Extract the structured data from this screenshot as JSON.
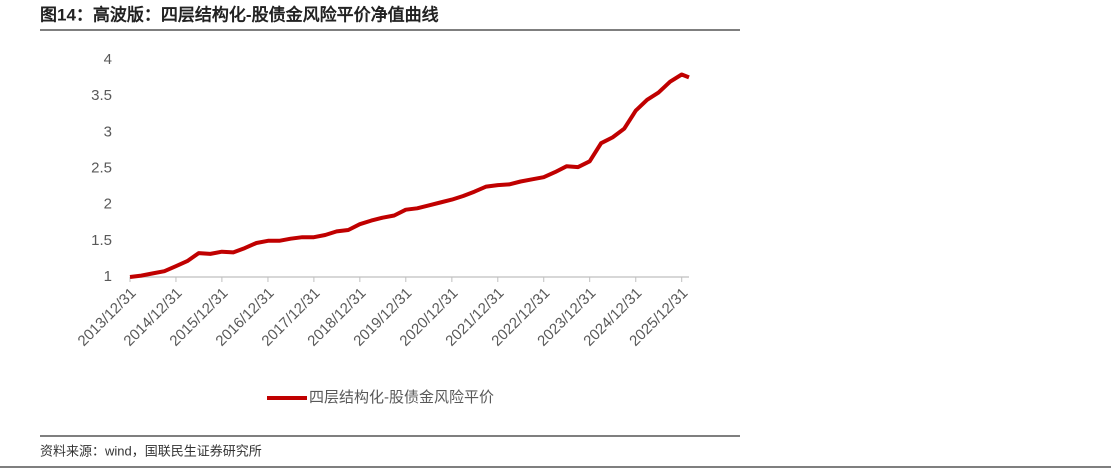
{
  "chart_data": {
    "type": "line",
    "title": "图14：高波版：四层结构化-股债金风险平价净值曲线",
    "source": "资料来源：wind，国联民生证券研究所",
    "x": [
      "2013/12/31",
      "2014/03/31",
      "2014/06/30",
      "2014/09/30",
      "2014/12/31",
      "2015/03/31",
      "2015/06/30",
      "2015/09/30",
      "2015/12/31",
      "2016/03/31",
      "2016/06/30",
      "2016/09/30",
      "2016/12/31",
      "2017/03/31",
      "2017/06/30",
      "2017/09/30",
      "2017/12/31",
      "2018/03/31",
      "2018/06/30",
      "2018/09/30",
      "2018/12/31",
      "2019/03/31",
      "2019/06/30",
      "2019/09/30",
      "2019/12/31",
      "2020/03/31",
      "2020/06/30",
      "2020/09/30",
      "2020/12/31",
      "2021/03/31",
      "2021/06/30",
      "2021/09/30",
      "2021/12/31",
      "2022/03/31",
      "2022/06/30",
      "2022/09/30",
      "2022/12/31",
      "2023/03/31",
      "2023/06/30",
      "2023/09/30",
      "2023/12/31",
      "2024/03/31",
      "2024/06/30",
      "2024/09/30",
      "2024/12/31",
      "2025/03/31",
      "2025/06/30",
      "2025/09/30",
      "2025/12/31",
      "2026/02/27"
    ],
    "series": [
      {
        "name": "四层结构化-股债金风险平价",
        "color": "#c00000",
        "values": [
          1.0,
          1.02,
          1.05,
          1.08,
          1.15,
          1.22,
          1.33,
          1.32,
          1.35,
          1.34,
          1.4,
          1.47,
          1.5,
          1.5,
          1.53,
          1.55,
          1.55,
          1.58,
          1.63,
          1.65,
          1.73,
          1.78,
          1.82,
          1.85,
          1.93,
          1.95,
          1.99,
          2.03,
          2.07,
          2.12,
          2.18,
          2.25,
          2.27,
          2.28,
          2.32,
          2.35,
          2.38,
          2.45,
          2.53,
          2.52,
          2.6,
          2.85,
          2.93,
          3.05,
          3.3,
          3.45,
          3.55,
          3.7,
          3.8,
          3.76
        ]
      }
    ],
    "xlim": [
      "2013/12/31",
      "2026/02/27"
    ],
    "xticks": [
      "2013/12/31",
      "2014/12/31",
      "2015/12/31",
      "2016/12/31",
      "2017/12/31",
      "2018/12/31",
      "2019/12/31",
      "2020/12/31",
      "2021/12/31",
      "2022/12/31",
      "2023/12/31",
      "2024/12/31",
      "2025/12/31"
    ],
    "ylim": [
      1,
      4
    ],
    "yticks": [
      1,
      1.5,
      2,
      2.5,
      3,
      3.5,
      4
    ],
    "grid": false,
    "legend": "bottom"
  }
}
